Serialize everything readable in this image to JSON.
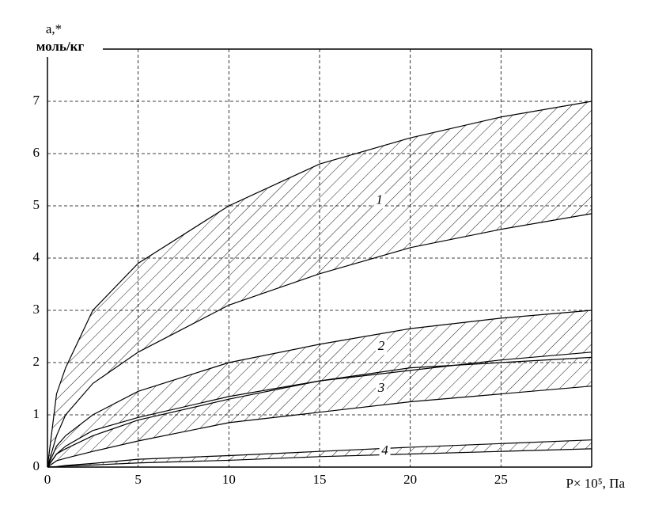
{
  "chart_data": {
    "type": "range-area",
    "y_label_line1": "a,*",
    "y_label_line2": "моль/кг",
    "x_label": "P× 10⁵, Па",
    "x": [
      0,
      0.5,
      1,
      2.5,
      5,
      10,
      15,
      20,
      25,
      30
    ],
    "series": [
      {
        "name": "1",
        "color": "#000000",
        "values": [
          0,
          1.4,
          1.9,
          3.0,
          3.9,
          5.0,
          5.8,
          6.3,
          6.7,
          7.0
        ],
        "lower_values": [
          0,
          0.6,
          1.0,
          1.6,
          2.2,
          3.1,
          3.7,
          4.2,
          4.55,
          4.85
        ]
      },
      {
        "name": "2",
        "color": "#000000",
        "values": [
          0,
          0.4,
          0.6,
          1.0,
          1.45,
          2.0,
          2.35,
          2.65,
          2.85,
          3.0
        ],
        "lower_values": [
          0,
          0.25,
          0.4,
          0.7,
          0.95,
          1.35,
          1.65,
          1.85,
          2.05,
          2.2
        ]
      },
      {
        "name": "3",
        "color": "#000000",
        "values": [
          0,
          0.25,
          0.35,
          0.6,
          0.9,
          1.3,
          1.65,
          1.9,
          2.0,
          2.1
        ],
        "lower_values": [
          0,
          0.12,
          0.17,
          0.3,
          0.5,
          0.85,
          1.05,
          1.25,
          1.4,
          1.55
        ]
      },
      {
        "name": "4",
        "color": "#000000",
        "values": [
          0,
          0.01,
          0.03,
          0.07,
          0.15,
          0.22,
          0.3,
          0.38,
          0.45,
          0.52
        ],
        "lower_values": [
          0,
          0.005,
          0.02,
          0.04,
          0.08,
          0.13,
          0.2,
          0.25,
          0.3,
          0.35
        ]
      }
    ],
    "xlim": [
      0,
      30
    ],
    "ylim": [
      0,
      8
    ],
    "xticks": [
      0,
      5,
      10,
      15,
      20,
      25
    ],
    "yticks": [
      0,
      1,
      2,
      3,
      4,
      5,
      6,
      7
    ],
    "grid": true
  }
}
